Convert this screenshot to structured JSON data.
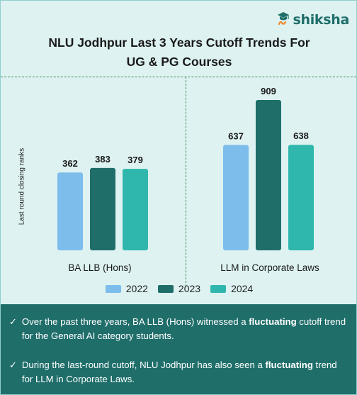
{
  "brand": {
    "name": "shiksha",
    "icon": "shiksha-logo-icon"
  },
  "title_line1": "NLU Jodhpur  Last 3 Years Cutoff Trends For",
  "title_line2": "UG & PG Courses",
  "colors": {
    "2022": "#7dbdec",
    "2023": "#1f6e6a",
    "2024": "#2fb7ad",
    "background": "#ddf2f1",
    "panel": "#1f6e6a"
  },
  "chart_data": {
    "type": "bar",
    "ylabel": "Last round closing ranks",
    "series_names": [
      "2022",
      "2023",
      "2024"
    ],
    "groups": [
      {
        "category": "BA LLB (Hons)",
        "values": [
          362,
          383,
          379
        ]
      },
      {
        "category": "LLM in Corporate Laws",
        "values": [
          637,
          909,
          638
        ]
      }
    ],
    "grid": false,
    "legend_position": "bottom"
  },
  "notes": [
    {
      "check": "✓",
      "before": "Over the past three years, BA LLB (Hons) witnessed a ",
      "bold": "fluctuating",
      "after": " cutoff trend for the General AI category students."
    },
    {
      "check": "✓",
      "before": "During the last-round cutoff, NLU Jodhpur  has also seen a ",
      "bold": "fluctuating",
      "after": " trend for LLM in Corporate Laws."
    }
  ]
}
